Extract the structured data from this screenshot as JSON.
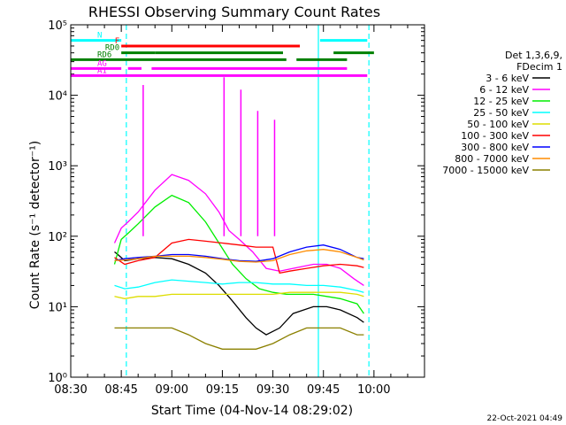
{
  "chart_data": {
    "type": "line",
    "title": "RHESSI Observing Summary Count Rates",
    "xlabel": "Start Time (04-Nov-14 08:29:02)",
    "ylabel": "Count Rate (s⁻¹ detector⁻¹)",
    "x_unit": "minutes after 08:30",
    "xlim": [
      0,
      105
    ],
    "ylim": [
      1,
      100000
    ],
    "yscale": "log",
    "x_ticks": [
      {
        "label": "08:30",
        "x": 0
      },
      {
        "label": "08:45",
        "x": 15
      },
      {
        "label": "09:00",
        "x": 30
      },
      {
        "label": "09:15",
        "x": 45
      },
      {
        "label": "09:30",
        "x": 60
      },
      {
        "label": "09:45",
        "x": 75
      },
      {
        "label": "10:00",
        "x": 90
      }
    ],
    "y_ticks": [
      {
        "label": "10⁰",
        "v": 1
      },
      {
        "label": "10¹",
        "v": 10
      },
      {
        "label": "10²",
        "v": 100
      },
      {
        "label": "10³",
        "v": 1000
      },
      {
        "label": "10⁴",
        "v": 10000
      },
      {
        "label": "10⁵",
        "v": 100000
      }
    ],
    "legend_header": [
      "Det 1,3,6,9,",
      "FDecim 1"
    ],
    "series": [
      {
        "name": "3 - 6 keV",
        "color": "#000000",
        "points": [
          [
            13,
            60
          ],
          [
            14,
            55
          ],
          [
            16,
            45
          ],
          [
            20,
            48
          ],
          [
            25,
            50
          ],
          [
            30,
            48
          ],
          [
            35,
            40
          ],
          [
            40,
            30
          ],
          [
            44,
            20
          ],
          [
            48,
            12
          ],
          [
            52,
            7
          ],
          [
            55,
            5
          ],
          [
            58,
            4
          ],
          [
            62,
            5
          ],
          [
            66,
            8
          ],
          [
            72,
            10
          ],
          [
            76,
            10
          ],
          [
            80,
            9
          ],
          [
            85,
            7
          ],
          [
            87,
            6
          ]
        ]
      },
      {
        "name": "6 - 12 keV",
        "color": "#ff00ff",
        "points": [
          [
            13,
            80
          ],
          [
            15,
            130
          ],
          [
            17,
            160
          ],
          [
            20,
            220
          ],
          [
            25,
            450
          ],
          [
            30,
            750
          ],
          [
            35,
            620
          ],
          [
            40,
            400
          ],
          [
            44,
            220
          ],
          [
            47,
            120
          ],
          [
            50,
            90
          ],
          [
            54,
            60
          ],
          [
            58,
            35
          ],
          [
            62,
            32
          ],
          [
            66,
            35
          ],
          [
            72,
            40
          ],
          [
            76,
            40
          ],
          [
            80,
            35
          ],
          [
            84,
            25
          ],
          [
            87,
            20
          ]
        ]
      },
      {
        "name": "12 - 25 keV",
        "color": "#00ee00",
        "points": [
          [
            13,
            40
          ],
          [
            15,
            90
          ],
          [
            17,
            110
          ],
          [
            20,
            150
          ],
          [
            25,
            260
          ],
          [
            30,
            380
          ],
          [
            35,
            300
          ],
          [
            40,
            160
          ],
          [
            44,
            80
          ],
          [
            48,
            40
          ],
          [
            52,
            25
          ],
          [
            56,
            18
          ],
          [
            60,
            16
          ],
          [
            64,
            15
          ],
          [
            68,
            15
          ],
          [
            72,
            15
          ],
          [
            76,
            14
          ],
          [
            80,
            13
          ],
          [
            85,
            11
          ],
          [
            87,
            8
          ]
        ]
      },
      {
        "name": "25 - 50 keV",
        "color": "#00ffff",
        "points": [
          [
            13,
            20
          ],
          [
            16,
            18
          ],
          [
            20,
            19
          ],
          [
            25,
            22
          ],
          [
            30,
            24
          ],
          [
            35,
            23
          ],
          [
            40,
            22
          ],
          [
            45,
            21
          ],
          [
            50,
            22
          ],
          [
            55,
            22
          ],
          [
            60,
            21
          ],
          [
            65,
            21
          ],
          [
            70,
            20
          ],
          [
            75,
            20
          ],
          [
            80,
            19
          ],
          [
            85,
            17
          ],
          [
            87,
            16
          ]
        ]
      },
      {
        "name": "50 - 100 keV",
        "color": "#dddd00",
        "points": [
          [
            13,
            14
          ],
          [
            16,
            13
          ],
          [
            20,
            14
          ],
          [
            25,
            14
          ],
          [
            30,
            15
          ],
          [
            35,
            15
          ],
          [
            40,
            15
          ],
          [
            45,
            15
          ],
          [
            50,
            15
          ],
          [
            55,
            15
          ],
          [
            60,
            15
          ],
          [
            65,
            16
          ],
          [
            70,
            16
          ],
          [
            75,
            16
          ],
          [
            80,
            16
          ],
          [
            85,
            15
          ],
          [
            87,
            14
          ]
        ]
      },
      {
        "name": "100 - 300 keV",
        "color": "#ff0000",
        "points": [
          [
            13,
            50
          ],
          [
            16,
            40
          ],
          [
            20,
            45
          ],
          [
            25,
            50
          ],
          [
            30,
            80
          ],
          [
            35,
            90
          ],
          [
            40,
            85
          ],
          [
            45,
            80
          ],
          [
            50,
            75
          ],
          [
            55,
            70
          ],
          [
            60,
            70
          ],
          [
            62,
            30
          ],
          [
            65,
            32
          ],
          [
            70,
            35
          ],
          [
            75,
            38
          ],
          [
            80,
            40
          ],
          [
            85,
            38
          ],
          [
            87,
            36
          ]
        ]
      },
      {
        "name": "300 - 800 keV",
        "color": "#0000ff",
        "points": [
          [
            13,
            45
          ],
          [
            16,
            48
          ],
          [
            20,
            50
          ],
          [
            25,
            52
          ],
          [
            30,
            55
          ],
          [
            35,
            55
          ],
          [
            40,
            52
          ],
          [
            45,
            48
          ],
          [
            50,
            45
          ],
          [
            55,
            44
          ],
          [
            60,
            48
          ],
          [
            65,
            60
          ],
          [
            70,
            70
          ],
          [
            75,
            75
          ],
          [
            80,
            65
          ],
          [
            85,
            50
          ],
          [
            87,
            48
          ]
        ]
      },
      {
        "name": "800 - 7000 keV",
        "color": "#ff8c00",
        "points": [
          [
            13,
            45
          ],
          [
            16,
            46
          ],
          [
            20,
            48
          ],
          [
            25,
            52
          ],
          [
            30,
            52
          ],
          [
            35,
            52
          ],
          [
            40,
            50
          ],
          [
            45,
            47
          ],
          [
            50,
            44
          ],
          [
            55,
            43
          ],
          [
            60,
            45
          ],
          [
            65,
            55
          ],
          [
            70,
            62
          ],
          [
            75,
            65
          ],
          [
            80,
            60
          ],
          [
            85,
            50
          ],
          [
            87,
            46
          ]
        ]
      },
      {
        "name": "7000 - 15000 keV",
        "color": "#8b8000",
        "points": [
          [
            13,
            5
          ],
          [
            16,
            5
          ],
          [
            20,
            5
          ],
          [
            25,
            5
          ],
          [
            30,
            5
          ],
          [
            35,
            4
          ],
          [
            40,
            3
          ],
          [
            45,
            2.5
          ],
          [
            50,
            2.5
          ],
          [
            55,
            2.5
          ],
          [
            60,
            3
          ],
          [
            65,
            4
          ],
          [
            70,
            5
          ],
          [
            75,
            5
          ],
          [
            80,
            5
          ],
          [
            85,
            4
          ],
          [
            87,
            4
          ]
        ]
      }
    ],
    "flares": [
      {
        "x": 21.5,
        "peak": 14000,
        "color": "#ff00ff"
      },
      {
        "x": 45.5,
        "peak": 18000,
        "color": "#ff00ff"
      },
      {
        "x": 50.5,
        "peak": 12000,
        "color": "#ff00ff"
      },
      {
        "x": 55.5,
        "peak": 6000,
        "color": "#ff00ff"
      },
      {
        "x": 60.5,
        "peak": 4500,
        "color": "#ff00ff"
      }
    ],
    "vlines": [
      {
        "x": 16.5,
        "color": "#00ffff",
        "dashed": true
      },
      {
        "x": 73.5,
        "color": "#00ffff",
        "dashed": false
      },
      {
        "x": 88.5,
        "color": "#00ffff",
        "dashed": true
      }
    ],
    "flag_bars": [
      {
        "label": "N",
        "color": "#00ffff",
        "v": 60000,
        "segments": [
          [
            0,
            15
          ],
          [
            74,
            88
          ]
        ]
      },
      {
        "label": "F",
        "color": "#ff0000",
        "v": 50000,
        "segments": [
          [
            15,
            68
          ]
        ]
      },
      {
        "label": "RD0",
        "color": "#008000",
        "v": 40000,
        "segments": [
          [
            15,
            25
          ],
          [
            25,
            63
          ],
          [
            78,
            90
          ]
        ]
      },
      {
        "label": "RD6",
        "color": "#008000",
        "v": 32000,
        "segments": [
          [
            0,
            64
          ],
          [
            67,
            82
          ]
        ]
      },
      {
        "label": "AG",
        "color": "#ff00ff",
        "v": 24000,
        "segments": [
          [
            0,
            15
          ],
          [
            17,
            21
          ],
          [
            24,
            82
          ]
        ]
      },
      {
        "label": "A1",
        "color": "#ff00ff",
        "v": 19000,
        "segments": [
          [
            0,
            88
          ]
        ]
      }
    ],
    "timestamp": "22-Oct-2021 04:49"
  }
}
